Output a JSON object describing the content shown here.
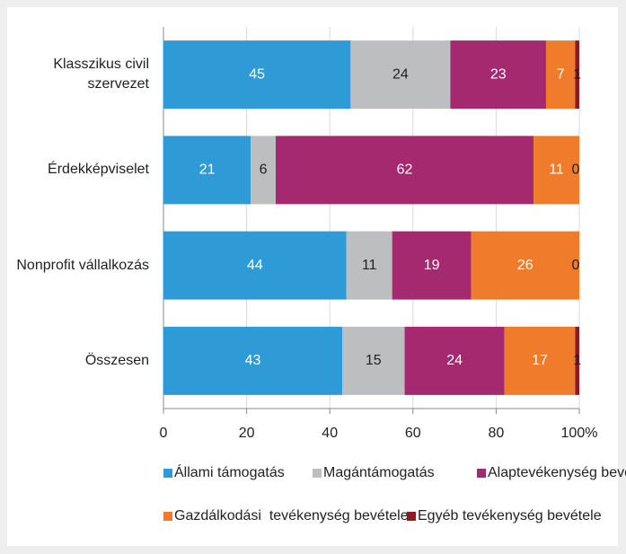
{
  "chart_data": {
    "type": "stacked_barh",
    "categories": [
      "Klasszikus civil szervezet",
      "Érdekképviselet",
      "Nonprofit vállalkozás",
      "Összesen"
    ],
    "series": [
      {
        "name": "Állami támogatás",
        "color": "#2e9ad6",
        "values": [
          45,
          21,
          44,
          43
        ]
      },
      {
        "name": "Magántámogatás",
        "color": "#bdbec0",
        "values": [
          24,
          6,
          11,
          15
        ]
      },
      {
        "name": "Alaptevékenység bevétele",
        "color": "#a4296f",
        "values": [
          23,
          62,
          19,
          24
        ]
      },
      {
        "name": "Gazdálkodási  tevékenység bevétele",
        "color": "#f07b2b",
        "values": [
          7,
          11,
          26,
          17
        ]
      },
      {
        "name": "Egyéb tevékenység bevétele",
        "color": "#8c1c1f",
        "values": [
          1,
          0,
          0,
          1
        ]
      }
    ],
    "xlim": [
      0,
      100
    ],
    "xticks": [
      0,
      20,
      40,
      60,
      80,
      {
        "value": 100,
        "label": "100%"
      }
    ],
    "grid": true
  }
}
